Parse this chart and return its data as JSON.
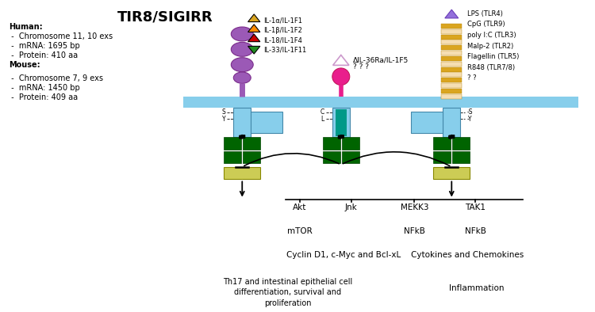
{
  "title": "TIR8/SIGIRR",
  "bg_color": "#ffffff",
  "left_info": [
    [
      "Human:",
      true
    ],
    [
      " -  Chromosome 11, 10 exs",
      false
    ],
    [
      " -  mRNA: 1695 bp",
      false
    ],
    [
      " -  Protein: 410 aa",
      false
    ],
    [
      "Mouse:",
      true
    ],
    [
      " -  Chromosome 7, 9 exs",
      false
    ],
    [
      " -  mRNA: 1450 bp",
      false
    ],
    [
      " -  Protein: 409 aa",
      false
    ]
  ],
  "tri_colors": [
    "#DAA520",
    "#FF8C00",
    "#CC0000",
    "#228B22"
  ],
  "tri_labels": [
    "IL-1α/IL-1F1",
    "IL-1β/IL-1F2",
    "IL-18/IL-1F4",
    "IL-33/IL-1F11"
  ],
  "tlr_labels": [
    "LPS (TLR4)",
    "CpG (TLR9)",
    "poly I:C (TLR3)",
    "Malp-2 (TLR2)",
    "Flagellin (TLR5)",
    "R848 (TLR7/8)",
    "? ?"
  ],
  "sigirr_label": "ΔIL-36Ra/IL-1F5",
  "sigirr_qqq": "? ? ?",
  "membrane_color": "#87CEEB",
  "il1r_color": "#9B59B6",
  "sigirr_color": "#E91E8C",
  "tlr_color_a": "#DAA520",
  "tlr_color_b": "#F5DEB3",
  "tir_color": "#87CEEB",
  "dd_color": "#006400",
  "irak_color": "#CCCC55",
  "orange_arrow": "#C8660A",
  "box_color": "#C8E6F5"
}
